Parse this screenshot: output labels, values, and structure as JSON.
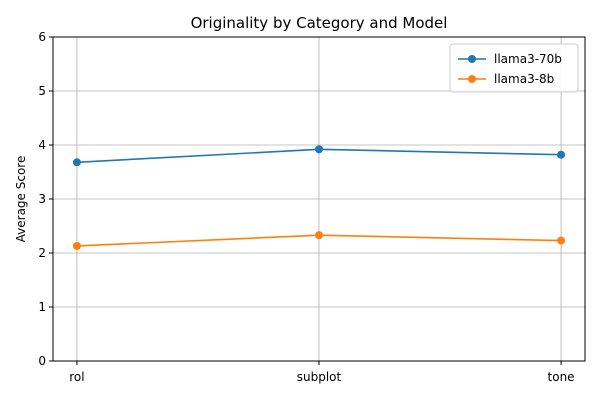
{
  "chart_data": {
    "type": "line",
    "title": "Originality by Category and Model",
    "xlabel": "",
    "ylabel": "Average Score",
    "categories": [
      "rol",
      "subplot",
      "tone"
    ],
    "ylim": [
      0,
      6
    ],
    "yticks": [
      0,
      1,
      2,
      3,
      4,
      5,
      6
    ],
    "grid": true,
    "legend_position": "top-right",
    "series": [
      {
        "name": "llama3-70b",
        "color": "#1f77b4",
        "values": [
          3.68,
          3.92,
          3.82
        ]
      },
      {
        "name": "llama3-8b",
        "color": "#ff7f0e",
        "values": [
          2.13,
          2.33,
          2.23
        ]
      }
    ]
  }
}
